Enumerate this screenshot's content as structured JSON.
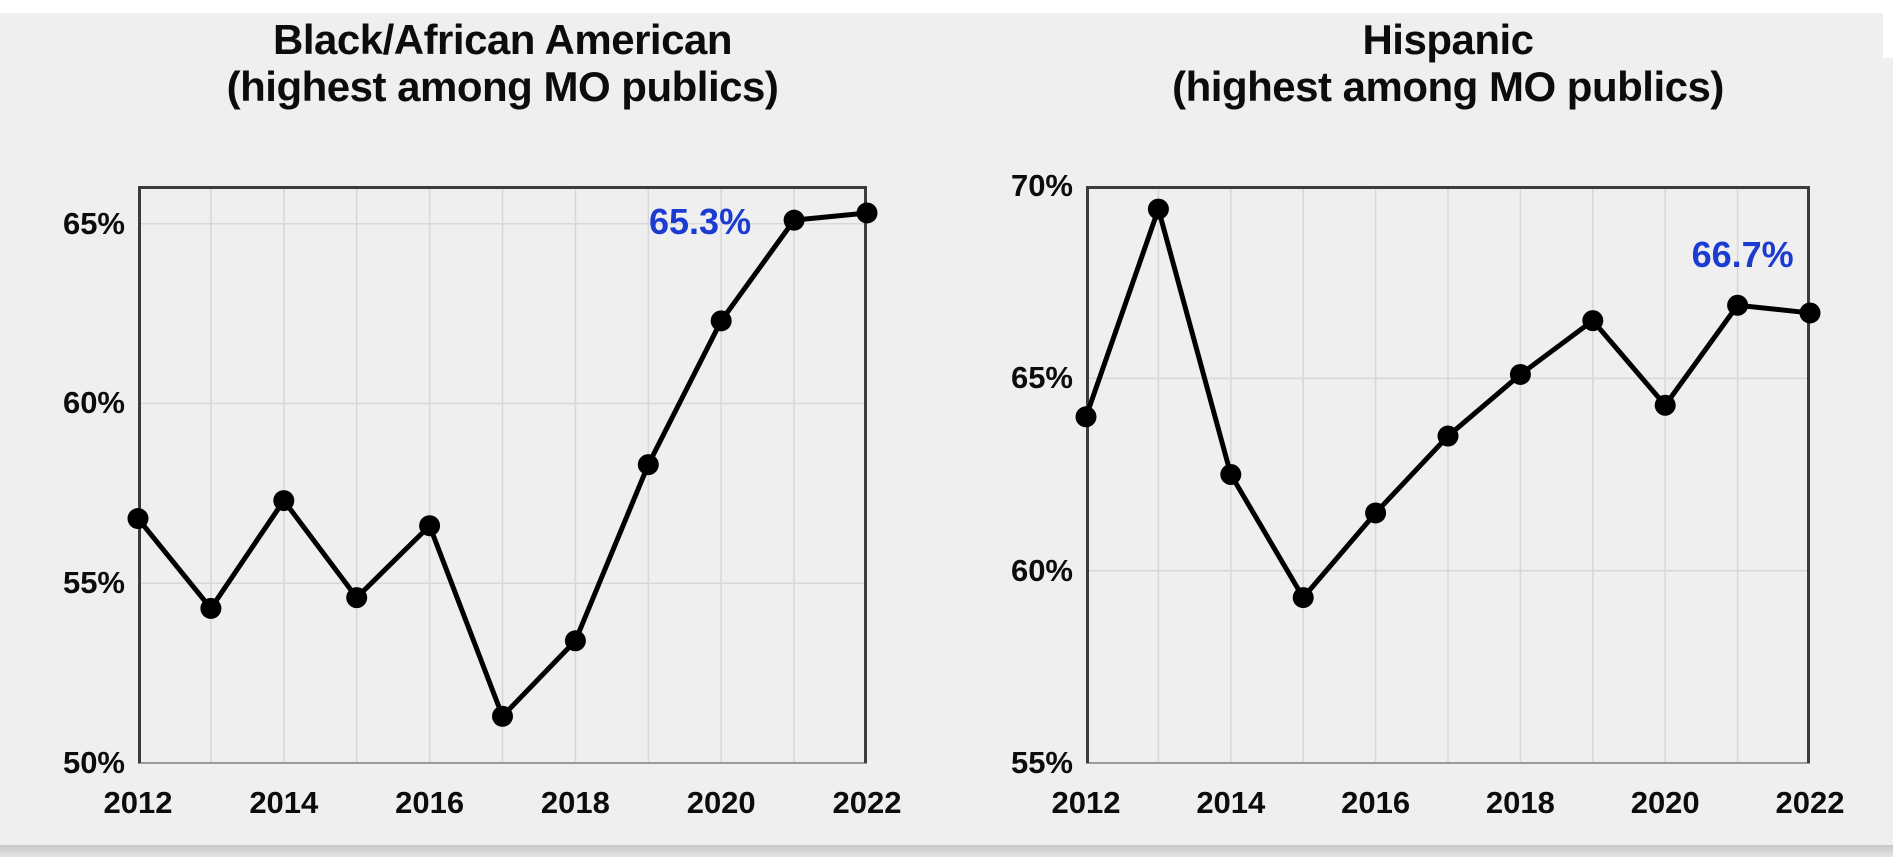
{
  "page": {
    "background": "#efefef",
    "accent_blue": "#1c3bd0",
    "top_strip_color": "#ffffff",
    "bottom_bar_color": "#d4d4d4"
  },
  "chart_data": [
    {
      "type": "line",
      "title": "Black/African American",
      "subtitle": "(highest among MO publics)",
      "x": [
        2012,
        2013,
        2014,
        2015,
        2016,
        2017,
        2018,
        2019,
        2020,
        2021,
        2022
      ],
      "values": [
        56.8,
        54.3,
        57.3,
        54.6,
        56.6,
        51.3,
        53.4,
        58.3,
        62.3,
        65.1,
        65.3
      ],
      "ylim": [
        50,
        66.05
      ],
      "yticks": [
        50,
        55,
        60,
        65
      ],
      "ytick_suffix": "%",
      "xticks": [
        2012,
        2014,
        2016,
        2018,
        2020,
        2022
      ],
      "grid": true,
      "legend": null,
      "line_color": "#000000",
      "annotation": {
        "text": "65.3%",
        "year": 2019.71,
        "value": 65.05
      }
    },
    {
      "type": "line",
      "title": "Hispanic",
      "subtitle": "(highest among MO publics)",
      "x": [
        2012,
        2013,
        2014,
        2015,
        2016,
        2017,
        2018,
        2019,
        2020,
        2021,
        2022
      ],
      "values": [
        64.0,
        69.4,
        62.5,
        59.3,
        61.5,
        63.5,
        65.1,
        66.5,
        64.3,
        66.9,
        66.7
      ],
      "ylim": [
        55,
        70
      ],
      "yticks": [
        55,
        60,
        65,
        70
      ],
      "ytick_suffix": "%",
      "xticks": [
        2012,
        2014,
        2016,
        2018,
        2020,
        2022
      ],
      "grid": true,
      "legend": null,
      "line_color": "#000000",
      "annotation": {
        "text": "66.7%",
        "year": 2021.07,
        "value": 68.2
      }
    }
  ]
}
